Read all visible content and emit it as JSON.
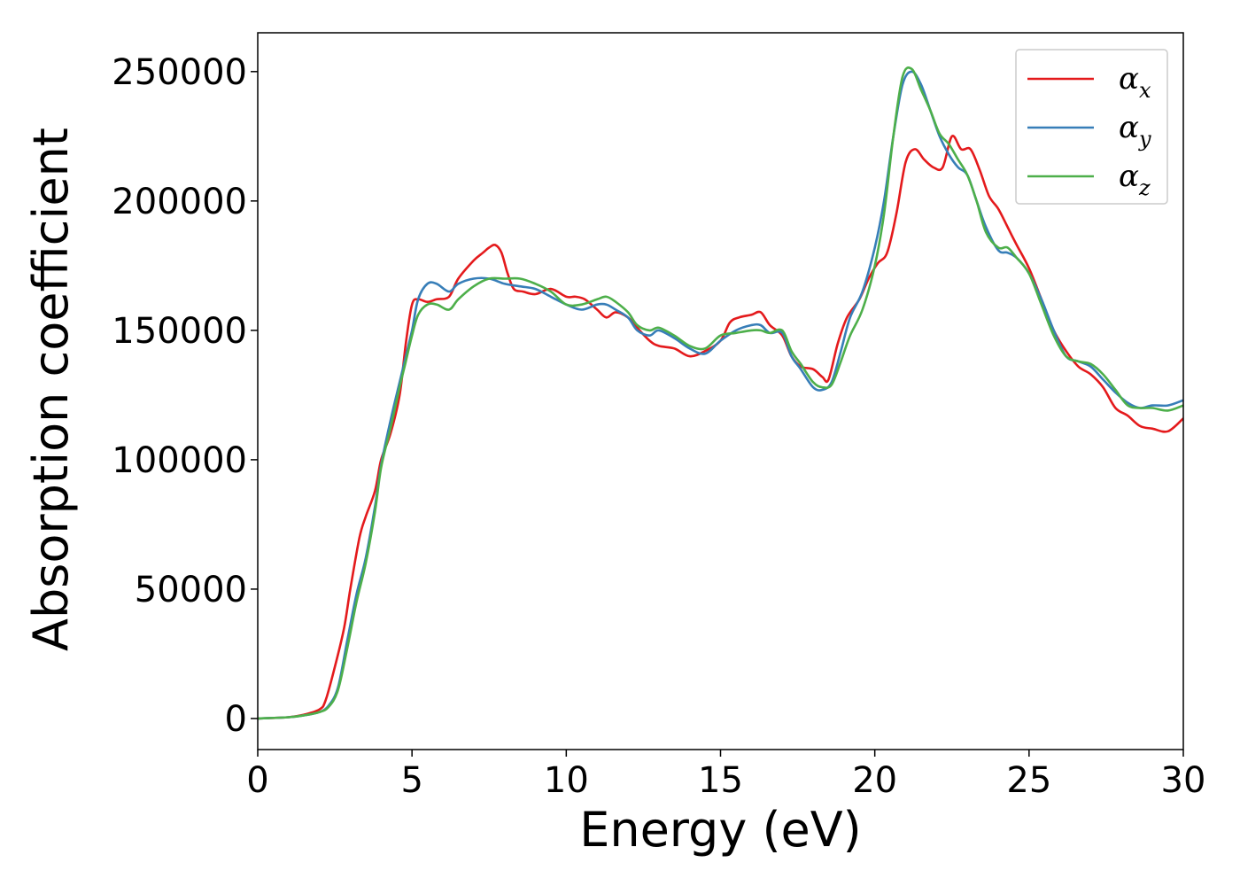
{
  "chart_data": {
    "type": "line",
    "title": "",
    "xlabel": "Energy (eV)",
    "ylabel": "Absorption coefficient",
    "xlim": [
      0,
      30
    ],
    "ylim": [
      -12000,
      265000
    ],
    "xticks": [
      0,
      5,
      10,
      15,
      20,
      25,
      30
    ],
    "yticks": [
      0,
      50000,
      100000,
      150000,
      200000,
      250000
    ],
    "xtick_labels": [
      "0",
      "5",
      "10",
      "15",
      "20",
      "25",
      "30"
    ],
    "ytick_labels": [
      "0",
      "50000",
      "100000",
      "150000",
      "200000",
      "250000"
    ],
    "grid": false,
    "legend_position": "top-right",
    "series": [
      {
        "name": "αx",
        "label_main": "α",
        "label_sub": "x",
        "color": "#e41a1c",
        "x": [
          0,
          1,
          1.5,
          2,
          2.2,
          2.5,
          2.8,
          3.0,
          3.3,
          3.5,
          3.8,
          4.0,
          4.3,
          4.6,
          4.8,
          5.0,
          5.2,
          5.5,
          5.8,
          6.2,
          6.5,
          7.0,
          7.3,
          7.5,
          7.7,
          7.9,
          8.1,
          8.3,
          8.6,
          9.0,
          9.5,
          10.0,
          10.3,
          10.6,
          11.0,
          11.3,
          11.6,
          12.0,
          12.3,
          12.7,
          13.0,
          13.5,
          14.0,
          14.5,
          15.0,
          15.3,
          15.6,
          16.0,
          16.3,
          16.6,
          17.0,
          17.3,
          17.6,
          18.0,
          18.3,
          18.5,
          18.8,
          19.1,
          19.5,
          19.8,
          20.1,
          20.4,
          20.7,
          21.0,
          21.3,
          21.6,
          21.9,
          22.2,
          22.5,
          22.8,
          23.1,
          23.4,
          23.7,
          24.0,
          24.3,
          24.6,
          25.0,
          25.4,
          25.8,
          26.2,
          26.6,
          27.0,
          27.4,
          27.8,
          28.2,
          28.6,
          29.0,
          29.5,
          30.0
        ],
        "y": [
          0,
          500,
          1500,
          3500,
          7000,
          20000,
          35000,
          50000,
          70000,
          78000,
          88000,
          100000,
          110000,
          125000,
          145000,
          160000,
          162000,
          161000,
          162000,
          163000,
          170000,
          177000,
          180000,
          182000,
          183000,
          180000,
          172000,
          166000,
          165000,
          164000,
          166000,
          163000,
          163000,
          162000,
          158000,
          155000,
          157000,
          155000,
          151000,
          146000,
          144000,
          143000,
          140000,
          142000,
          146000,
          153000,
          155000,
          156000,
          157000,
          152000,
          148000,
          140000,
          136000,
          135000,
          132000,
          131000,
          145000,
          155000,
          162000,
          170000,
          176000,
          180000,
          195000,
          215000,
          220000,
          216000,
          213000,
          213000,
          225000,
          220000,
          220000,
          212000,
          202000,
          197000,
          190000,
          183000,
          174000,
          162000,
          150000,
          142000,
          136000,
          133000,
          128000,
          120000,
          117000,
          113000,
          112000,
          111000,
          116000
        ]
      },
      {
        "name": "αy",
        "label_main": "α",
        "label_sub": "y",
        "color": "#377eb8",
        "x": [
          0,
          1,
          1.5,
          2,
          2.3,
          2.6,
          2.9,
          3.2,
          3.5,
          3.8,
          4.0,
          4.3,
          4.6,
          4.8,
          5.0,
          5.2,
          5.5,
          5.8,
          6.2,
          6.5,
          7.0,
          7.5,
          8.0,
          8.5,
          9.0,
          9.5,
          10.0,
          10.5,
          11.0,
          11.3,
          11.6,
          12.0,
          12.3,
          12.7,
          13.0,
          13.5,
          14.0,
          14.5,
          15.0,
          15.5,
          16.0,
          16.3,
          16.6,
          17.0,
          17.3,
          17.6,
          18.0,
          18.3,
          18.6,
          18.9,
          19.2,
          19.6,
          20.0,
          20.3,
          20.6,
          20.9,
          21.2,
          21.5,
          21.8,
          22.1,
          22.4,
          22.7,
          23.0,
          23.3,
          23.6,
          24.0,
          24.3,
          24.6,
          25.0,
          25.4,
          25.8,
          26.2,
          26.6,
          27.0,
          27.4,
          27.8,
          28.2,
          28.6,
          29.0,
          29.5,
          30.0
        ],
        "y": [
          0,
          500,
          1200,
          2500,
          5000,
          12000,
          30000,
          48000,
          62000,
          82000,
          98000,
          115000,
          130000,
          140000,
          150000,
          162000,
          168000,
          168000,
          165000,
          168000,
          170000,
          170000,
          168000,
          167000,
          166000,
          163000,
          160000,
          158000,
          160000,
          160000,
          158000,
          155000,
          150000,
          148000,
          150000,
          147000,
          143000,
          141000,
          146000,
          150000,
          152000,
          152000,
          149000,
          149000,
          140000,
          135000,
          128000,
          127000,
          130000,
          142000,
          155000,
          165000,
          182000,
          200000,
          225000,
          245000,
          250000,
          245000,
          235000,
          225000,
          218000,
          213000,
          210000,
          200000,
          190000,
          181000,
          180000,
          178000,
          172000,
          162000,
          150000,
          140000,
          138000,
          136000,
          131000,
          126000,
          122000,
          120000,
          121000,
          121000,
          123000
        ]
      },
      {
        "name": "αz",
        "label_main": "α",
        "label_sub": "z",
        "color": "#4daf4a",
        "x": [
          0,
          1,
          1.5,
          2,
          2.3,
          2.6,
          2.9,
          3.2,
          3.5,
          3.8,
          4.0,
          4.3,
          4.6,
          4.8,
          5.0,
          5.2,
          5.5,
          5.8,
          6.2,
          6.5,
          7.0,
          7.5,
          8.0,
          8.5,
          9.0,
          9.5,
          10.0,
          10.5,
          11.0,
          11.3,
          11.6,
          12.0,
          12.3,
          12.7,
          13.0,
          13.5,
          14.0,
          14.5,
          15.0,
          15.5,
          16.0,
          16.3,
          16.6,
          17.0,
          17.3,
          17.6,
          18.0,
          18.3,
          18.6,
          18.9,
          19.2,
          19.6,
          20.0,
          20.3,
          20.6,
          20.9,
          21.2,
          21.5,
          21.8,
          22.1,
          22.4,
          22.7,
          23.0,
          23.3,
          23.6,
          24.0,
          24.3,
          24.6,
          25.0,
          25.4,
          25.8,
          26.2,
          26.6,
          27.0,
          27.4,
          27.8,
          28.2,
          28.6,
          29.0,
          29.5,
          30.0
        ],
        "y": [
          0,
          500,
          1200,
          2500,
          4500,
          11000,
          27000,
          45000,
          60000,
          80000,
          97000,
          112000,
          128000,
          138000,
          148000,
          156000,
          160000,
          160000,
          158000,
          162000,
          167000,
          170000,
          170000,
          170000,
          168000,
          165000,
          160000,
          160000,
          162000,
          163000,
          161000,
          157000,
          152000,
          150000,
          151000,
          148000,
          144000,
          143000,
          148000,
          149000,
          150000,
          150000,
          149000,
          150000,
          142000,
          137000,
          130000,
          128000,
          129000,
          138000,
          148000,
          158000,
          175000,
          195000,
          225000,
          248000,
          251000,
          243000,
          235000,
          226000,
          222000,
          216000,
          210000,
          200000,
          188000,
          182000,
          182000,
          178000,
          172000,
          160000,
          148000,
          140000,
          138000,
          137000,
          133000,
          127000,
          121000,
          120000,
          120000,
          119000,
          121000
        ]
      }
    ]
  }
}
